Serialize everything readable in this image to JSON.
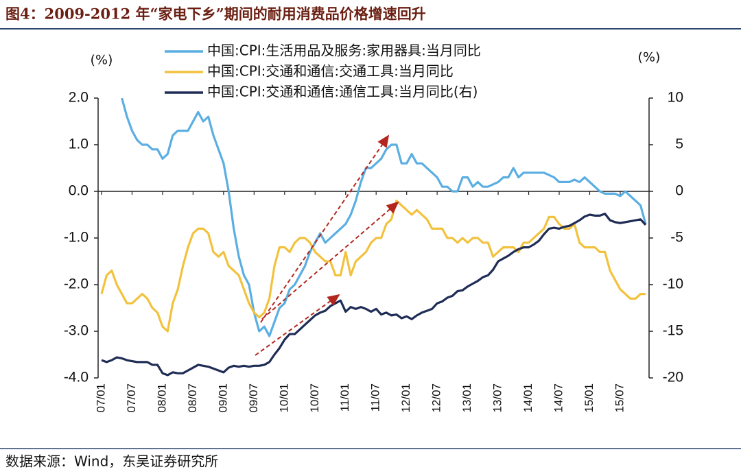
{
  "chart_data": {
    "type": "line",
    "title": "图4：2009-2012 年“家电下乡”期间的耐用消费品价格增速回升",
    "source": "数据来源：Wind，东吴证券研究所",
    "y_label": "(%)",
    "y2_label": "(%)",
    "categories": [
      "07/01",
      null,
      null,
      null,
      null,
      null,
      "07/07",
      null,
      null,
      null,
      null,
      null,
      "08/01",
      null,
      null,
      null,
      null,
      null,
      "08/07",
      null,
      null,
      null,
      null,
      null,
      "09/01",
      null,
      null,
      null,
      null,
      null,
      "09/07",
      null,
      null,
      null,
      null,
      null,
      "10/01",
      null,
      null,
      null,
      null,
      null,
      "10/07",
      null,
      null,
      null,
      null,
      null,
      "11/01",
      null,
      null,
      null,
      null,
      null,
      "11/07",
      null,
      null,
      null,
      null,
      null,
      "12/01",
      null,
      null,
      null,
      null,
      null,
      "12/07",
      null,
      null,
      null,
      null,
      null,
      "13/01",
      null,
      null,
      null,
      null,
      null,
      "13/07",
      null,
      null,
      null,
      null,
      null,
      "14/01",
      null,
      null,
      null,
      null,
      null,
      "14/07",
      null,
      null,
      null,
      null,
      null,
      "15/01",
      null,
      null,
      null,
      null,
      null,
      "15/07",
      null,
      null,
      null,
      null,
      null
    ],
    "ylim": [
      -4,
      2
    ],
    "yticks": [
      {
        "value": 2,
        "label": "2.0"
      },
      {
        "value": 1,
        "label": "1.0"
      },
      {
        "value": 0,
        "label": "0.0"
      },
      {
        "value": -1,
        "label": "-1.0"
      },
      {
        "value": -2,
        "label": "-2.0"
      },
      {
        "value": -3,
        "label": "-3.0"
      },
      {
        "value": -4,
        "label": "-4.0"
      }
    ],
    "y2lim": [
      -20,
      10
    ],
    "y2ticks": [
      10,
      5,
      0,
      -5,
      -10,
      -15,
      -20
    ],
    "series": [
      {
        "name": "中国:CPI:生活用品及服务:家用器具:当月同比",
        "color": "#5aaee2",
        "values": [
          null,
          null,
          null,
          null,
          2.0,
          1.6,
          1.3,
          1.1,
          1.0,
          1.0,
          0.9,
          0.9,
          0.7,
          0.8,
          1.2,
          1.3,
          1.3,
          1.3,
          1.5,
          1.7,
          1.5,
          1.6,
          1.2,
          0.9,
          0.6,
          0.0,
          -0.8,
          -1.4,
          -1.8,
          -2.0,
          -2.6,
          -3.0,
          -2.9,
          -3.1,
          -2.8,
          -2.5,
          -2.4,
          -2.1,
          -2.0,
          -1.8,
          -1.6,
          -1.3,
          -1.1,
          -0.9,
          -1.1,
          -1.0,
          -0.9,
          -0.8,
          -0.7,
          -0.5,
          -0.2,
          0.2,
          0.5,
          0.5,
          0.6,
          0.7,
          0.9,
          1.0,
          1.0,
          0.6,
          0.6,
          0.8,
          0.6,
          0.6,
          0.5,
          0.4,
          0.3,
          0.1,
          0.1,
          0.0,
          0.0,
          0.3,
          0.3,
          0.1,
          0.2,
          0.1,
          0.1,
          0.15,
          0.2,
          0.3,
          0.3,
          0.5,
          0.3,
          0.4,
          0.4,
          0.4,
          0.4,
          0.4,
          0.35,
          0.3,
          0.2,
          0.2,
          0.2,
          0.25,
          0.2,
          0.3,
          0.2,
          0.1,
          0.0,
          -0.05,
          -0.05,
          -0.05,
          -0.1,
          0.0,
          -0.1,
          -0.2,
          -0.3,
          -0.7
        ]
      },
      {
        "name": "中国:CPI:交通和通信:交通工具:当月同比",
        "color": "#f2c23e",
        "values": [
          -2.2,
          -1.8,
          -1.7,
          -2.0,
          -2.2,
          -2.4,
          -2.4,
          -2.3,
          -2.2,
          -2.3,
          -2.5,
          -2.6,
          -2.9,
          -3.0,
          -2.4,
          -2.1,
          -1.6,
          -1.2,
          -0.9,
          -0.8,
          -0.8,
          -0.9,
          -1.3,
          -1.4,
          -1.3,
          -1.6,
          -1.7,
          -1.8,
          -2.1,
          -2.4,
          -2.6,
          -2.7,
          -2.6,
          -2.3,
          -1.6,
          -1.2,
          -1.2,
          -1.3,
          -1.1,
          -1.0,
          -1.0,
          -1.1,
          -1.3,
          -1.4,
          -1.5,
          -1.5,
          -1.8,
          -1.8,
          -1.3,
          -1.8,
          -1.5,
          -1.4,
          -1.3,
          -1.1,
          -1.0,
          -1.0,
          -0.7,
          -0.6,
          -0.2,
          -0.3,
          -0.4,
          -0.5,
          -0.4,
          -0.5,
          -0.6,
          -0.8,
          -0.8,
          -0.8,
          -1.0,
          -1.0,
          -1.1,
          -1.0,
          -1.1,
          -1.0,
          -1.0,
          -1.1,
          -1.1,
          -1.4,
          -1.3,
          -1.2,
          -1.2,
          -1.2,
          -1.3,
          -1.1,
          -1.1,
          -1.0,
          -0.9,
          -0.8,
          -0.55,
          -0.55,
          -0.7,
          -0.8,
          -0.8,
          -0.7,
          -1.1,
          -1.2,
          -1.2,
          -1.2,
          -1.3,
          -1.3,
          -1.7,
          -1.9,
          -2.1,
          -2.2,
          -2.3,
          -2.3,
          -2.2,
          -2.2
        ]
      },
      {
        "name": "中国:CPI:交通和通信:通信工具:当月同比(右)",
        "color": "#1f2c55",
        "axis": "y2",
        "values": [
          -18.1,
          -18.3,
          -18.1,
          -17.8,
          -17.9,
          -18.1,
          -18.2,
          -18.3,
          -18.3,
          -18.3,
          -18.6,
          -18.6,
          -19.5,
          -19.7,
          -19.4,
          -19.5,
          -19.5,
          -19.2,
          -18.9,
          -18.6,
          -18.7,
          -18.8,
          -19.0,
          -19.2,
          -19.4,
          -18.9,
          -18.7,
          -18.8,
          -18.7,
          -18.8,
          -18.7,
          -18.7,
          -18.6,
          -18.3,
          -17.5,
          -16.8,
          -15.9,
          -15.3,
          -15.3,
          -14.8,
          -14.3,
          -13.8,
          -13.3,
          -13.0,
          -12.8,
          -12.3,
          -12.0,
          -11.7,
          -12.9,
          -12.4,
          -12.6,
          -12.4,
          -12.6,
          -12.9,
          -12.6,
          -13.2,
          -13.0,
          -13.3,
          -13.2,
          -13.6,
          -13.4,
          -13.7,
          -13.3,
          -13.0,
          -12.8,
          -12.6,
          -12.0,
          -11.8,
          -11.4,
          -11.2,
          -10.7,
          -10.6,
          -10.2,
          -9.9,
          -9.6,
          -9.2,
          -9.0,
          -8.4,
          -7.5,
          -7.2,
          -6.9,
          -6.5,
          -6.2,
          -6.0,
          -6.0,
          -5.7,
          -5.3,
          -4.6,
          -4.0,
          -3.9,
          -4.0,
          -3.8,
          -3.7,
          -3.4,
          -3.1,
          -2.7,
          -2.5,
          -2.6,
          -2.6,
          -2.4,
          -3.1,
          -3.3,
          -3.4,
          -3.3,
          -3.2,
          -3.1,
          -3.0,
          -3.6
        ]
      }
    ]
  }
}
